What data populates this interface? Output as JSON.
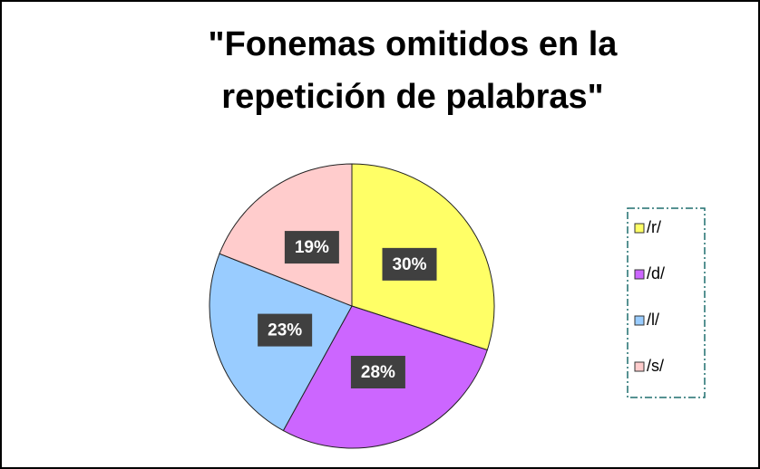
{
  "chart_data": {
    "type": "pie",
    "title": "\"Fonemas omitidos en la repetición de palabras\"",
    "categories": [
      "/r/",
      "/d/",
      "/l/",
      "/s/"
    ],
    "values": [
      30,
      28,
      23,
      19
    ],
    "value_labels": [
      "30%",
      "28%",
      "23%",
      "19%"
    ],
    "colors": [
      "#ffff66",
      "#cc66ff",
      "#99ccff",
      "#ffcccc"
    ],
    "legend": "right"
  }
}
